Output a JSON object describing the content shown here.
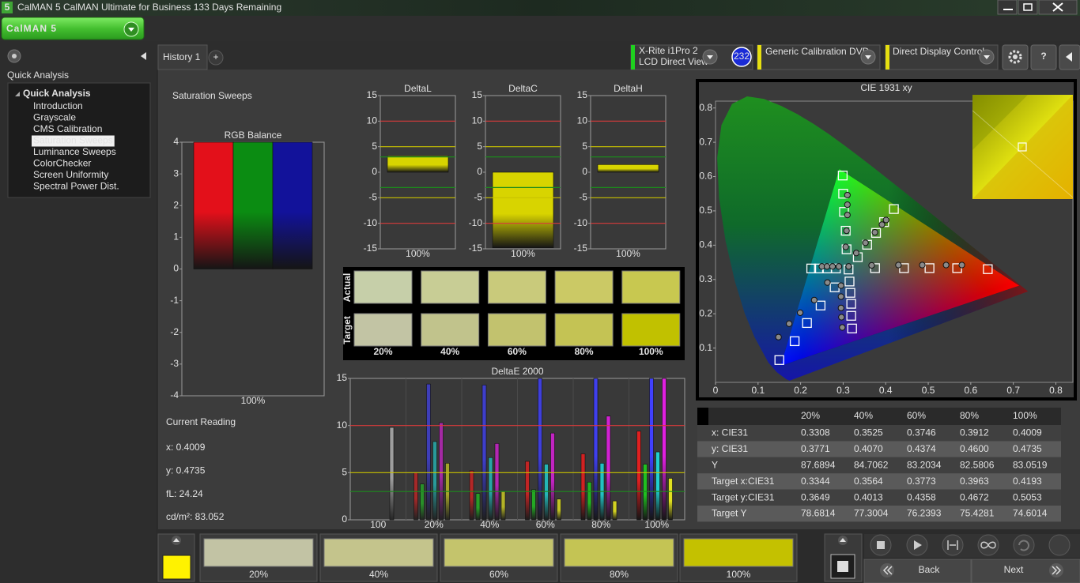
{
  "window": {
    "title": "CalMAN 5 CalMAN Ultimate for Business 133 Days Remaining",
    "icon": "5",
    "logo": "CalMAN 5"
  },
  "sidebar": {
    "heading": "Quick Analysis",
    "tree_root": "Quick Analysis",
    "items": [
      "Introduction",
      "Grayscale",
      "CMS Calibration",
      "Saturation Sweeps",
      "Luminance Sweeps",
      "ColorChecker",
      "Screen Uniformity",
      "Spectral Power Dist."
    ],
    "selected": 3
  },
  "tabs": {
    "items": [
      "History 1"
    ],
    "add": "+"
  },
  "toolbar": {
    "meter": "X-Rite i1Pro 2",
    "meter_mode": "LCD Direct View",
    "meter_badge": "232",
    "source": "Generic Calibration DVD",
    "display": "Direct Display Control",
    "help": "?"
  },
  "page_title": "Saturation Sweeps",
  "current_reading": {
    "title": "Current Reading",
    "lines": [
      "x: 0.4009",
      "y: 0.4735",
      "fL: 24.24",
      "cd/m²: 83.052"
    ]
  },
  "swatches": {
    "row_labels": [
      "Actual",
      "Target"
    ],
    "labels": [
      "20%",
      "40%",
      "60%",
      "80%",
      "100%"
    ],
    "actual": [
      "#c6cfa9",
      "#c8cd95",
      "#c9ca7b",
      "#cbc965",
      "#c8c850"
    ],
    "target": [
      "#c2c4a4",
      "#c1c38c",
      "#c2c26e",
      "#c4c354",
      "#c1c100"
    ]
  },
  "table": {
    "columns": [
      "20%",
      "40%",
      "60%",
      "80%",
      "100%"
    ],
    "rows": [
      {
        "label": "x: CIE31",
        "cells": [
          "0.3308",
          "0.3525",
          "0.3746",
          "0.3912",
          "0.4009"
        ]
      },
      {
        "label": "y: CIE31",
        "cells": [
          "0.3771",
          "0.4070",
          "0.4374",
          "0.4600",
          "0.4735"
        ]
      },
      {
        "label": "Y",
        "cells": [
          "87.6894",
          "84.7062",
          "83.2034",
          "82.5806",
          "83.0519"
        ]
      },
      {
        "label": "Target x:CIE31",
        "cells": [
          "0.3344",
          "0.3564",
          "0.3773",
          "0.3963",
          "0.4193"
        ]
      },
      {
        "label": "Target y:CIE31",
        "cells": [
          "0.3649",
          "0.4013",
          "0.4358",
          "0.4672",
          "0.5053"
        ]
      },
      {
        "label": "Target Y",
        "cells": [
          "78.6814",
          "77.3004",
          "76.2393",
          "75.4281",
          "74.6014"
        ]
      }
    ]
  },
  "footer": {
    "current_color": "#fff200",
    "swatches": [
      {
        "label": "20%",
        "color": "#c2c3a4"
      },
      {
        "label": "40%",
        "color": "#c4c48c"
      },
      {
        "label": "60%",
        "color": "#c4c46c"
      },
      {
        "label": "80%",
        "color": "#c4c454"
      },
      {
        "label": "100%",
        "color": "#c4c100"
      }
    ],
    "back": "Back",
    "next": "Next"
  },
  "chart_data": [
    {
      "type": "bar",
      "title": "RGB Balance",
      "categories": [
        "100%"
      ],
      "series": [
        {
          "color": "#e3101a",
          "values": [
            4
          ]
        },
        {
          "color": "#0b8c12",
          "values": [
            4
          ]
        },
        {
          "color": "#12129a",
          "values": [
            4
          ]
        }
      ],
      "ylim": [
        -4,
        4
      ],
      "yticks": [
        -4,
        -3,
        -2,
        -1,
        0,
        1,
        2,
        3,
        4
      ]
    },
    {
      "type": "bar",
      "title": "DeltaL",
      "categories": [
        "100%"
      ],
      "values": [
        3.2
      ],
      "color": "#d8d400",
      "ylim": [
        -15,
        15
      ],
      "yticks": [
        -15,
        -10,
        -5,
        0,
        5,
        10,
        15
      ],
      "reference_lines": [
        {
          "value": 10,
          "color": "#d83a3a"
        },
        {
          "value": 5,
          "color": "#c9c200"
        },
        {
          "value": 3,
          "color": "#1c8a1c"
        },
        {
          "value": -3,
          "color": "#1c8a1c"
        },
        {
          "value": -5,
          "color": "#c9c200"
        },
        {
          "value": -10,
          "color": "#d83a3a"
        }
      ]
    },
    {
      "type": "bar",
      "title": "DeltaC",
      "categories": [
        "100%"
      ],
      "values": [
        -14.8
      ],
      "color": "#d8d400",
      "ylim": [
        -15,
        15
      ],
      "yticks": [
        -15,
        -10,
        -5,
        0,
        5,
        10,
        15
      ],
      "reference_lines": [
        {
          "value": 10,
          "color": "#d83a3a"
        },
        {
          "value": 5,
          "color": "#c9c200"
        },
        {
          "value": 3,
          "color": "#1c8a1c"
        },
        {
          "value": -3,
          "color": "#1c8a1c"
        },
        {
          "value": -5,
          "color": "#c9c200"
        },
        {
          "value": -10,
          "color": "#d83a3a"
        }
      ]
    },
    {
      "type": "bar",
      "title": "DeltaH",
      "categories": [
        "100%"
      ],
      "values": [
        1.5
      ],
      "color": "#d8d400",
      "ylim": [
        -15,
        15
      ],
      "yticks": [
        -15,
        -10,
        -5,
        0,
        5,
        10,
        15
      ],
      "reference_lines": [
        {
          "value": 10,
          "color": "#d83a3a"
        },
        {
          "value": 5,
          "color": "#c9c200"
        },
        {
          "value": 3,
          "color": "#1c8a1c"
        },
        {
          "value": -3,
          "color": "#1c8a1c"
        },
        {
          "value": -5,
          "color": "#c9c200"
        },
        {
          "value": -10,
          "color": "#d83a3a"
        }
      ]
    },
    {
      "type": "bar",
      "title": "DeltaE 2000",
      "categories": [
        "100",
        "20%",
        "40%",
        "60%",
        "80%",
        "100%"
      ],
      "series": [
        {
          "color": "#f0f0f0",
          "values": [
            9.8,
            null,
            null,
            null,
            null,
            null
          ]
        },
        {
          "color": "#e02020",
          "values": [
            null,
            5,
            5.2,
            6.2,
            7,
            9.4
          ]
        },
        {
          "color": "#20c020",
          "values": [
            null,
            3.8,
            2.8,
            3.2,
            4,
            5.9
          ]
        },
        {
          "color": "#4040ff",
          "values": [
            null,
            14.4,
            14.3,
            15,
            15,
            15
          ]
        },
        {
          "color": "#20d0d0",
          "values": [
            null,
            8.3,
            6.6,
            5.9,
            6,
            7.2
          ]
        },
        {
          "color": "#e020e0",
          "values": [
            null,
            10.3,
            8.1,
            9.2,
            11,
            15
          ]
        },
        {
          "color": "#e0e020",
          "values": [
            null,
            6,
            3,
            2.2,
            2,
            4.4
          ]
        }
      ],
      "ylim": [
        0,
        15
      ],
      "yticks": [
        0,
        5,
        10,
        15
      ],
      "reference_lines": [
        {
          "value": 10,
          "color": "#d83a3a"
        },
        {
          "value": 5,
          "color": "#c9c200"
        },
        {
          "value": 3,
          "color": "#1c8a1c"
        }
      ]
    },
    {
      "type": "scatter",
      "title": "CIE 1931 xy",
      "xlim": [
        0,
        0.84
      ],
      "ylim": [
        0,
        0.82
      ],
      "xticks": [
        0,
        0.1,
        0.2,
        0.3,
        0.4,
        0.5,
        0.6,
        0.7,
        0.8
      ],
      "yticks": [
        0.1,
        0.2,
        0.3,
        0.4,
        0.5,
        0.6,
        0.7,
        0.8
      ],
      "gamut": {
        "x": [
          0.714,
          0.291,
          0.153
        ],
        "y": [
          0.282,
          0.622,
          0.048
        ]
      },
      "series": [
        {
          "marker": "square",
          "color": "#ffffff",
          "x": [
            0.3127,
            0.375,
            0.443,
            0.503,
            0.568,
            0.64,
            0.308,
            0.306,
            0.302,
            0.3,
            0.299,
            0.28,
            0.247,
            0.215,
            0.186,
            0.15,
            0.3344,
            0.3564,
            0.3773,
            0.3963,
            0.4193,
            0.315,
            0.317,
            0.319,
            0.319,
            0.321,
            0.225,
            0.243,
            0.262,
            0.283
          ],
          "y": [
            0.329,
            0.333,
            0.333,
            0.333,
            0.333,
            0.33,
            0.388,
            0.442,
            0.497,
            0.55,
            0.603,
            0.277,
            0.224,
            0.173,
            0.12,
            0.065,
            0.3649,
            0.4013,
            0.4358,
            0.4672,
            0.5053,
            0.294,
            0.261,
            0.229,
            0.194,
            0.157,
            0.332,
            0.332,
            0.332,
            0.332
          ]
        },
        {
          "marker": "circle",
          "color": "#8a8a8a",
          "x": [
            0.3308,
            0.3525,
            0.3746,
            0.3912,
            0.4009,
            0.367,
            0.43,
            0.486,
            0.542,
            0.579,
            0.306,
            0.308,
            0.31,
            0.31,
            0.31,
            0.263,
            0.232,
            0.199,
            0.173,
            0.148,
            0.295,
            0.295,
            0.295,
            0.296,
            0.298,
            0.25,
            0.262,
            0.275,
            0.29,
            0.313
          ],
          "y": [
            0.3771,
            0.407,
            0.4374,
            0.46,
            0.4735,
            0.341,
            0.342,
            0.342,
            0.342,
            0.342,
            0.395,
            0.442,
            0.488,
            0.518,
            0.546,
            0.291,
            0.24,
            0.203,
            0.171,
            0.132,
            0.282,
            0.25,
            0.217,
            0.19,
            0.16,
            0.338,
            0.338,
            0.338,
            0.338,
            0.338
          ]
        }
      ]
    }
  ]
}
